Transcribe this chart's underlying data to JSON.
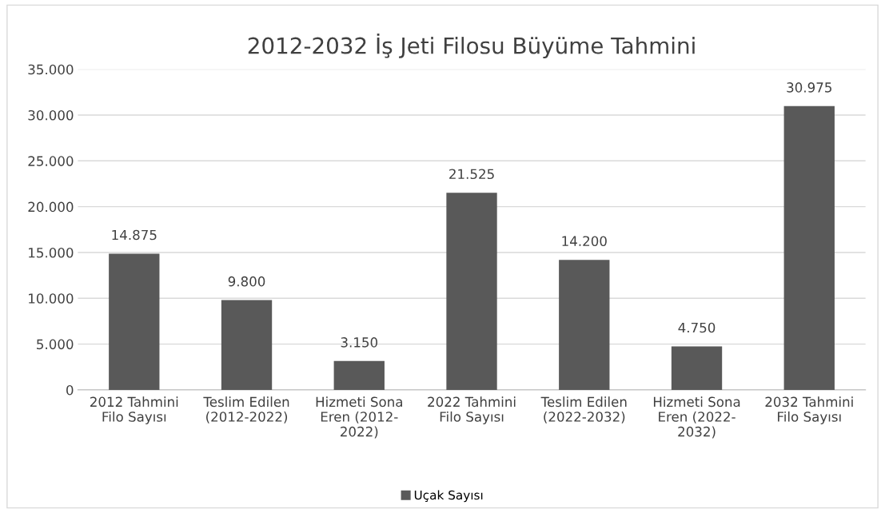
{
  "chart_data": {
    "type": "bar",
    "title": "2012-2032 İş Jeti Filosu Büyüme Tahmini",
    "categories": [
      "2012 Tahmini\nFilo Sayısı",
      "Teslim Edilen\n(2012-2022)",
      "Hizmeti Sona\nEren (2012-\n2022)",
      "2022 Tahmini\nFilo Sayısı",
      "Teslim Edilen\n(2022-2032)",
      "Hizmeti Sona\nEren (2022-\n2032)",
      "2032 Tahmini\nFilo Sayısı"
    ],
    "series": [
      {
        "name": "Uçak Sayısı",
        "color": "#595959",
        "values": [
          14875,
          9800,
          3150,
          21525,
          14200,
          4750,
          30975
        ],
        "value_labels": [
          "14.875",
          "9.800",
          "3.150",
          "21.525",
          "14.200",
          "4.750",
          "30.975"
        ]
      }
    ],
    "ylim": [
      0,
      35000
    ],
    "yticks": [
      {
        "value": 0,
        "label": "0"
      },
      {
        "value": 5000,
        "label": "5.000"
      },
      {
        "value": 10000,
        "label": "10.000"
      },
      {
        "value": 15000,
        "label": "15.000"
      },
      {
        "value": 20000,
        "label": "20.000"
      },
      {
        "value": 25000,
        "label": "25.000"
      },
      {
        "value": 30000,
        "label": "30.000"
      },
      {
        "value": 35000,
        "label": "35.000"
      }
    ],
    "grid": "y",
    "legend": "bottom"
  }
}
